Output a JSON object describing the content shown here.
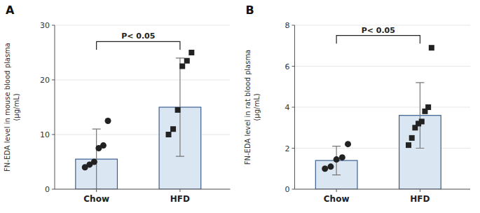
{
  "chart_data": [
    {
      "type": "bar",
      "title": "A",
      "y_label": "FN-EDA level in mouse blood plasma\n(μg/mL)",
      "categories": [
        "Chow",
        "HFD"
      ],
      "values": [
        5.5,
        15.0
      ],
      "errors": [
        5.5,
        9.0
      ],
      "points": [
        {
          "marker": "circle",
          "values": [
            4.0,
            4.5,
            5.0,
            7.5,
            8.0,
            12.5
          ]
        },
        {
          "marker": "square",
          "values": [
            10.0,
            11.0,
            14.5,
            22.5,
            23.5,
            25.0
          ]
        }
      ],
      "annotations": [
        {
          "text": "P< 0.05",
          "y": 27.0,
          "drop": 1.5
        }
      ],
      "ylim": [
        0,
        30
      ],
      "yticks": [
        0,
        10,
        20,
        30
      ]
    },
    {
      "type": "bar",
      "title": "B",
      "y_label": "FN-EDA level in rat blood plasma\n(μg/mL)",
      "categories": [
        "Chow",
        "HFD"
      ],
      "values": [
        1.4,
        3.6
      ],
      "errors": [
        0.7,
        1.6
      ],
      "points": [
        {
          "marker": "circle",
          "values": [
            1.0,
            1.1,
            1.45,
            1.55,
            2.2
          ]
        },
        {
          "marker": "square",
          "values": [
            2.15,
            2.5,
            3.0,
            3.2,
            3.3,
            3.8,
            4.0,
            6.9
          ]
        }
      ],
      "annotations": [
        {
          "text": "P< 0.05",
          "y": 7.5,
          "drop": 0.4
        }
      ],
      "ylim": [
        0,
        8
      ],
      "yticks": [
        0,
        2,
        4,
        6,
        8
      ]
    }
  ]
}
